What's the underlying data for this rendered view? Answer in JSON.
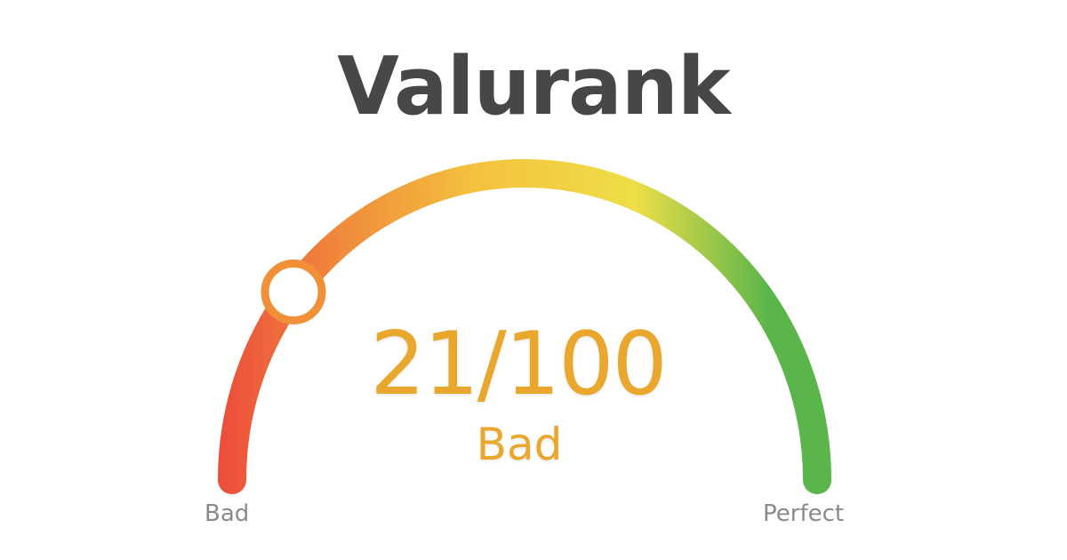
{
  "brand": {
    "title": "Valurank"
  },
  "gauge": {
    "score": 21,
    "max": 100,
    "score_text": "21/100",
    "rating": "Bad",
    "min_label": "Bad",
    "max_label": "Perfect",
    "colors": {
      "low": "#ec4c3a",
      "low_mid": "#f08a3c",
      "mid": "#f4c23e",
      "mid_high": "#eede47",
      "high": "#5ab54a",
      "marker_stroke": "#f29037",
      "value_text": "#e9a72d",
      "label_text": "#8a8a8a",
      "title_text": "#474747"
    }
  }
}
